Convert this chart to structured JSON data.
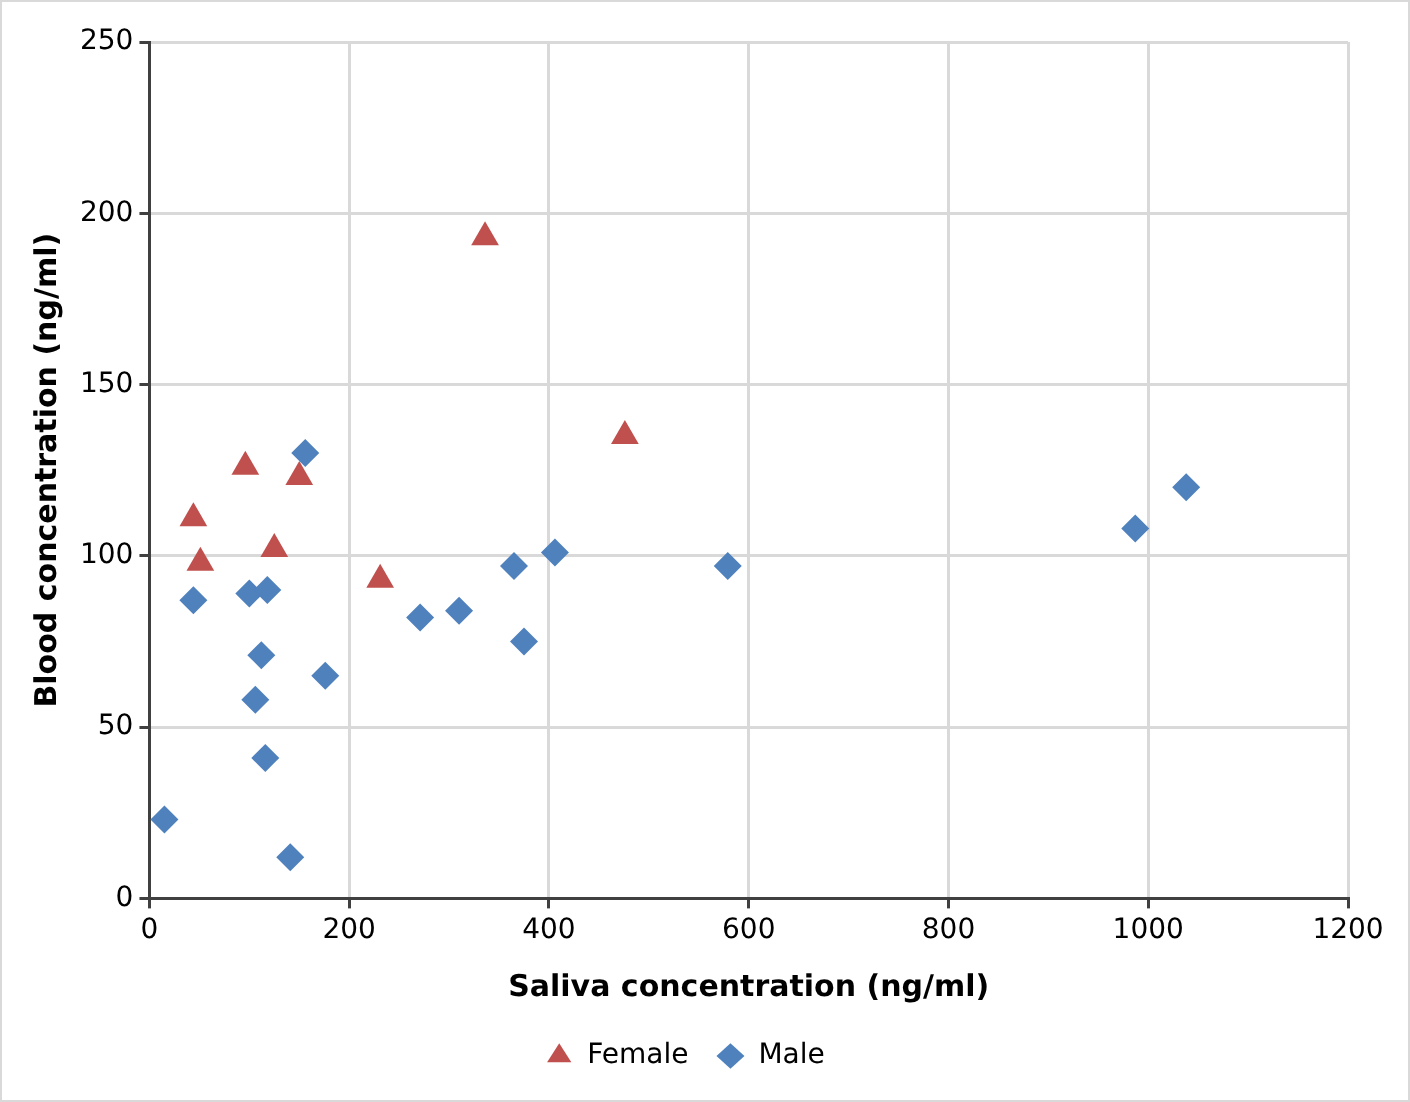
{
  "chart_data": {
    "type": "scatter",
    "xlabel": "Saliva concentration (ng/ml)",
    "ylabel": "Blood concentration (ng/ml)",
    "xlim": [
      0,
      1200
    ],
    "xticks": [
      0,
      200,
      400,
      600,
      800,
      1000,
      1200
    ],
    "ylim": [
      0,
      250
    ],
    "yticks": [
      0,
      50,
      100,
      150,
      200,
      250
    ],
    "grid": true,
    "legend": "bottom",
    "series": [
      {
        "name": "Female",
        "color": "#c0504d",
        "marker": "triangle",
        "x": [
          336,
          476,
          96,
          150,
          44,
          51,
          125,
          231
        ],
        "values": [
          193,
          135,
          126,
          123,
          111,
          98,
          102,
          93
        ]
      },
      {
        "name": "Male",
        "color": "#4f81bd",
        "marker": "diamond",
        "x": [
          156,
          44,
          100,
          118,
          112,
          106,
          116,
          176,
          15,
          141,
          271,
          310,
          365,
          406,
          375,
          579,
          987,
          1038
        ],
        "values": [
          130,
          87,
          89,
          90,
          71,
          58,
          41,
          65,
          23,
          12,
          82,
          84,
          97,
          101,
          75,
          97,
          108,
          120
        ]
      }
    ]
  }
}
